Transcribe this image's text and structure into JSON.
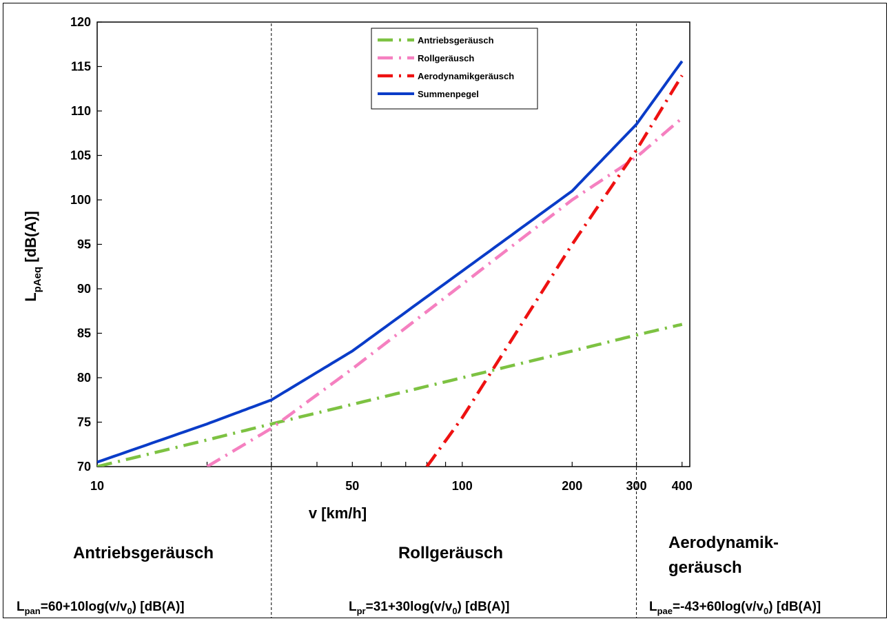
{
  "chart_data": {
    "type": "line",
    "x_scale": "log",
    "xlabel": "v [km/h]",
    "ylabel_main": "L",
    "ylabel_sub": "pAeq",
    "ylabel_rest": " [dB(A)]",
    "xlim": [
      10,
      420
    ],
    "ylim": [
      70,
      120
    ],
    "y_ticks": [
      70,
      75,
      80,
      85,
      90,
      95,
      100,
      105,
      110,
      115,
      120
    ],
    "x_ticks": [
      10,
      50,
      100,
      200,
      300,
      400
    ],
    "x_tick_labels": [
      "10",
      "50",
      "100",
      "200",
      "300",
      "400"
    ],
    "grid": false,
    "vertical_markers": [
      30,
      300
    ],
    "legend_position": "top-center",
    "series": [
      {
        "name": "Antriebsgeräusch",
        "color": "#7dc242",
        "style": "dash-dot",
        "x": [
          10,
          20,
          30,
          50,
          100,
          200,
          300,
          400
        ],
        "y": [
          70,
          73.0,
          74.8,
          77.0,
          80.0,
          83.0,
          84.8,
          86.0
        ]
      },
      {
        "name": "Rollgeräusch",
        "color": "#f580c0",
        "style": "dash-dot",
        "x": [
          20,
          30,
          50,
          100,
          200,
          300,
          400
        ],
        "y": [
          70,
          74.3,
          81.0,
          90.5,
          100.0,
          104.8,
          109.2
        ]
      },
      {
        "name": "Aerodynamikgeräusch",
        "color": "#ee1111",
        "style": "dash-dot",
        "x": [
          80,
          100,
          200,
          300,
          400
        ],
        "y": [
          70,
          75.5,
          95.0,
          105.6,
          114.0
        ]
      },
      {
        "name": "Summenpegel",
        "color": "#0a3cc8",
        "style": "solid",
        "x": [
          10,
          20,
          30,
          50,
          100,
          200,
          300,
          400
        ],
        "y": [
          70.5,
          74.8,
          77.5,
          83.0,
          92.0,
          101.0,
          108.5,
          115.6
        ]
      }
    ]
  },
  "regions": [
    {
      "lines": [
        "Antriebsgeräusch"
      ]
    },
    {
      "lines": [
        "Rollgeräusch"
      ]
    },
    {
      "lines": [
        "Aerodynamik-",
        "geräusch"
      ]
    }
  ],
  "formulas": [
    {
      "L": "L",
      "sub": "pan",
      "mid": "=60+10log(v/v",
      "zero": "0",
      "end": ") [dB(A)]"
    },
    {
      "L": "L",
      "sub": "pr",
      "mid": "=31+30log(v/v",
      "zero": "0",
      "end": ") [dB(A)]"
    },
    {
      "L": "L",
      "sub": "pae",
      "mid": "=-43+60log(v/v",
      "zero": "0",
      "end": ") [dB(A)]"
    }
  ]
}
